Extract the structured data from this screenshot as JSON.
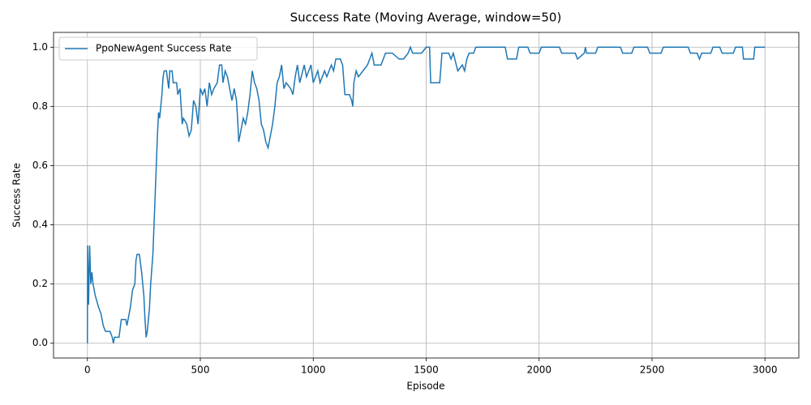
{
  "chart_data": {
    "type": "line",
    "title": "Success Rate (Moving Average, window=50)",
    "x_label": "Episode",
    "y_label": "Success Rate",
    "x": [
      0,
      1,
      5,
      10,
      15,
      20,
      25,
      35,
      50,
      60,
      70,
      80,
      100,
      110,
      115,
      120,
      140,
      150,
      170,
      175,
      180,
      190,
      200,
      210,
      215,
      220,
      230,
      240,
      250,
      255,
      260,
      265,
      275,
      280,
      290,
      300,
      310,
      315,
      320,
      330,
      335,
      340,
      350,
      360,
      365,
      375,
      380,
      395,
      400,
      410,
      420,
      425,
      440,
      450,
      460,
      470,
      480,
      490,
      500,
      510,
      520,
      530,
      540,
      550,
      560,
      575,
      585,
      595,
      600,
      610,
      620,
      630,
      640,
      650,
      660,
      665,
      670,
      680,
      690,
      700,
      710,
      720,
      730,
      740,
      750,
      760,
      770,
      780,
      790,
      800,
      810,
      820,
      830,
      840,
      850,
      860,
      870,
      880,
      900,
      910,
      920,
      930,
      940,
      960,
      970,
      980,
      990,
      1000,
      1020,
      1030,
      1040,
      1050,
      1060,
      1070,
      1080,
      1090,
      1100,
      1120,
      1130,
      1140,
      1160,
      1170,
      1175,
      1180,
      1190,
      1200,
      1220,
      1240,
      1250,
      1260,
      1270,
      1300,
      1320,
      1350,
      1380,
      1400,
      1420,
      1430,
      1440,
      1480,
      1500,
      1515,
      1520,
      1560,
      1570,
      1600,
      1610,
      1620,
      1640,
      1660,
      1670,
      1680,
      1690,
      1710,
      1720,
      1850,
      1860,
      1900,
      1910,
      1950,
      1960,
      2000,
      2010,
      2090,
      2100,
      2160,
      2170,
      2200,
      2205,
      2210,
      2250,
      2260,
      2360,
      2370,
      2410,
      2420,
      2480,
      2490,
      2540,
      2550,
      2660,
      2670,
      2700,
      2710,
      2720,
      2760,
      2770,
      2800,
      2810,
      2860,
      2870,
      2900,
      2905,
      2950,
      2955,
      3000
    ],
    "series": [
      {
        "name": "PpoNewAgent Success Rate",
        "color": "#1f77b4",
        "values": [
          0,
          0.33,
          0.13,
          0.33,
          0.2,
          0.24,
          0.2,
          0.16,
          0.12,
          0.1,
          0.06,
          0.04,
          0.04,
          0.02,
          0.0,
          0.02,
          0.02,
          0.08,
          0.08,
          0.06,
          0.08,
          0.12,
          0.18,
          0.2,
          0.28,
          0.3,
          0.3,
          0.24,
          0.16,
          0.08,
          0.02,
          0.04,
          0.12,
          0.2,
          0.3,
          0.5,
          0.7,
          0.78,
          0.76,
          0.84,
          0.9,
          0.92,
          0.92,
          0.86,
          0.92,
          0.92,
          0.88,
          0.88,
          0.84,
          0.86,
          0.74,
          0.76,
          0.74,
          0.7,
          0.72,
          0.82,
          0.8,
          0.74,
          0.86,
          0.84,
          0.86,
          0.8,
          0.88,
          0.84,
          0.86,
          0.88,
          0.94,
          0.94,
          0.88,
          0.92,
          0.9,
          0.86,
          0.82,
          0.86,
          0.82,
          0.76,
          0.68,
          0.72,
          0.76,
          0.74,
          0.78,
          0.84,
          0.92,
          0.88,
          0.86,
          0.82,
          0.74,
          0.72,
          0.68,
          0.66,
          0.7,
          0.74,
          0.8,
          0.88,
          0.9,
          0.94,
          0.86,
          0.88,
          0.86,
          0.84,
          0.9,
          0.94,
          0.88,
          0.94,
          0.9,
          0.92,
          0.94,
          0.88,
          0.92,
          0.88,
          0.9,
          0.92,
          0.9,
          0.92,
          0.94,
          0.92,
          0.96,
          0.96,
          0.94,
          0.84,
          0.84,
          0.82,
          0.8,
          0.88,
          0.92,
          0.9,
          0.92,
          0.94,
          0.96,
          0.98,
          0.94,
          0.94,
          0.98,
          0.98,
          0.96,
          0.96,
          0.98,
          1.0,
          0.98,
          0.98,
          1.0,
          1.0,
          0.88,
          0.88,
          0.98,
          0.98,
          0.96,
          0.98,
          0.92,
          0.94,
          0.92,
          0.96,
          0.98,
          0.98,
          1.0,
          1.0,
          0.96,
          0.96,
          1.0,
          1.0,
          0.98,
          0.98,
          1.0,
          1.0,
          0.98,
          0.98,
          0.96,
          0.98,
          1.0,
          0.98,
          0.98,
          1.0,
          1.0,
          0.98,
          0.98,
          1.0,
          1.0,
          0.98,
          0.98,
          1.0,
          1.0,
          0.98,
          0.98,
          0.96,
          0.98,
          0.98,
          1.0,
          1.0,
          0.98,
          0.98,
          1.0,
          1.0,
          0.96,
          0.96,
          1.0,
          1.0
        ]
      }
    ],
    "xlim": [
      -150,
      3150
    ],
    "ylim": [
      -0.05,
      1.05
    ],
    "xticks": [
      0,
      500,
      1000,
      1500,
      2000,
      2500,
      3000
    ],
    "yticks": [
      {
        "value": 0,
        "label": "0.0"
      },
      0.2,
      0.4,
      0.6,
      0.8,
      {
        "value": 1,
        "label": "1.0"
      }
    ],
    "grid": true,
    "legend": "upper-left"
  }
}
